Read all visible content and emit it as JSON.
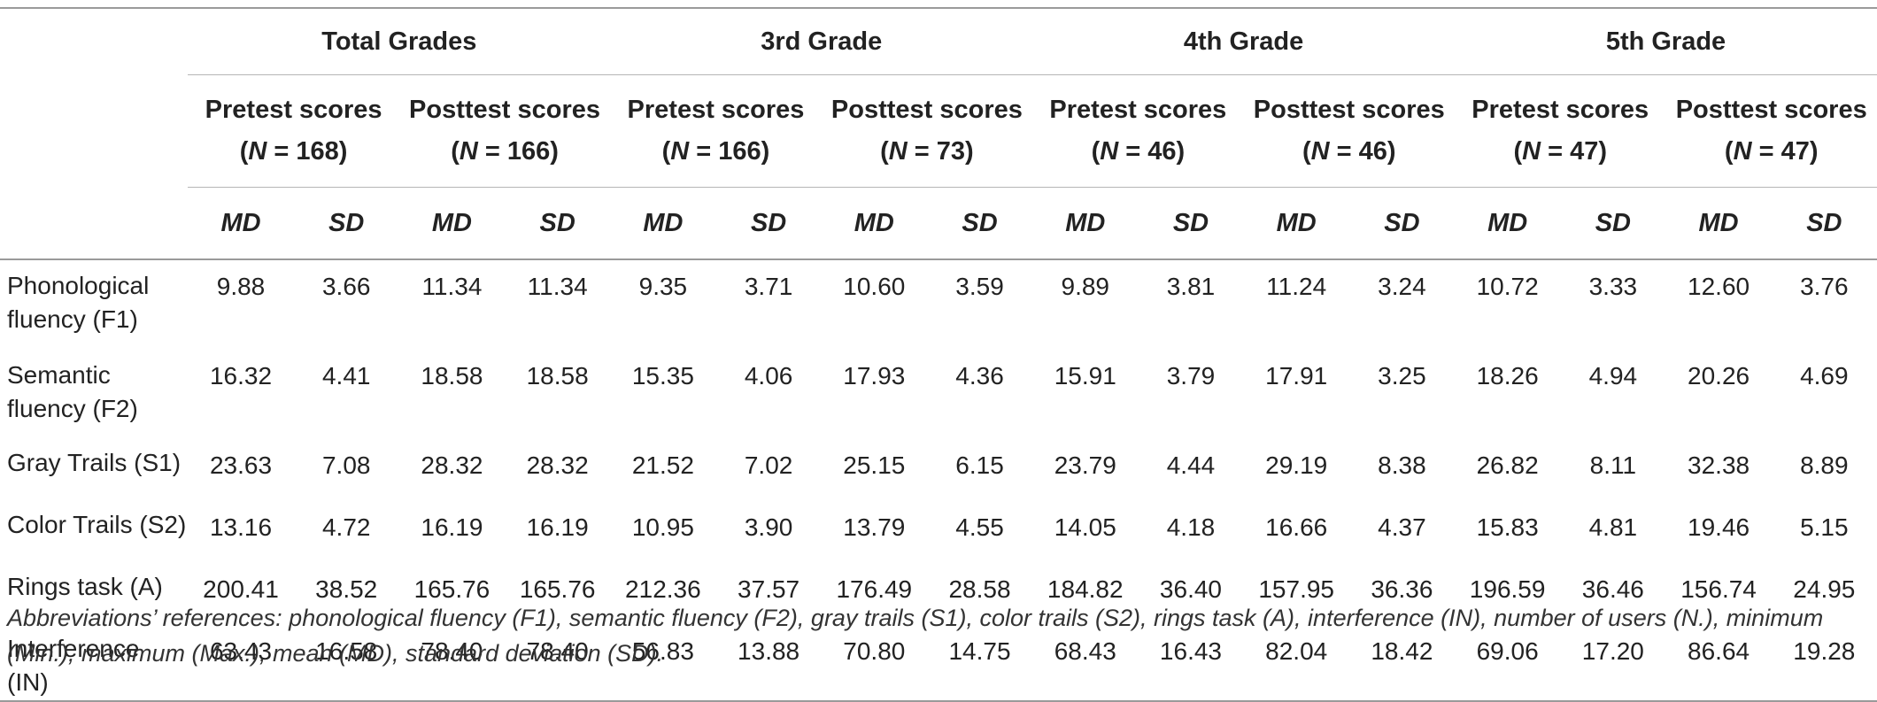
{
  "table": {
    "grades": [
      "Total Grades",
      "3rd Grade",
      "4th Grade",
      "5th Grade"
    ],
    "groups": [
      {
        "label": "Pretest scores",
        "n": "(N = 168)"
      },
      {
        "label": "Posttest scores",
        "n": "(N = 166)"
      },
      {
        "label": "Pretest scores",
        "n": "(N = 166)"
      },
      {
        "label": "Posttest scores",
        "n": "(N = 73)"
      },
      {
        "label": "Pretest scores",
        "n": "(N = 46)"
      },
      {
        "label": "Posttest scores",
        "n": "(N = 46)"
      },
      {
        "label": "Pretest scores",
        "n": "(N = 47)"
      },
      {
        "label": "Posttest scores",
        "n": "(N = 47)"
      }
    ],
    "stat_md": "MD",
    "stat_sd": "SD",
    "rows": [
      {
        "label": "Phonological fluency (F1)",
        "values": [
          "9.88",
          "3.66",
          "11.34",
          "11.34",
          "9.35",
          "3.71",
          "10.60",
          "3.59",
          "9.89",
          "3.81",
          "11.24",
          "3.24",
          "10.72",
          "3.33",
          "12.60",
          "3.76"
        ]
      },
      {
        "label": "Semantic fluency (F2)",
        "values": [
          "16.32",
          "4.41",
          "18.58",
          "18.58",
          "15.35",
          "4.06",
          "17.93",
          "4.36",
          "15.91",
          "3.79",
          "17.91",
          "3.25",
          "18.26",
          "4.94",
          "20.26",
          "4.69"
        ]
      },
      {
        "label": "Gray Trails (S1)",
        "values": [
          "23.63",
          "7.08",
          "28.32",
          "28.32",
          "21.52",
          "7.02",
          "25.15",
          "6.15",
          "23.79",
          "4.44",
          "29.19",
          "8.38",
          "26.82",
          "8.11",
          "32.38",
          "8.89"
        ]
      },
      {
        "label": "Color Trails (S2)",
        "values": [
          "13.16",
          "4.72",
          "16.19",
          "16.19",
          "10.95",
          "3.90",
          "13.79",
          "4.55",
          "14.05",
          "4.18",
          "16.66",
          "4.37",
          "15.83",
          "4.81",
          "19.46",
          "5.15"
        ]
      },
      {
        "label": "Rings task (A)",
        "values": [
          "200.41",
          "38.52",
          "165.76",
          "165.76",
          "212.36",
          "37.57",
          "176.49",
          "28.58",
          "184.82",
          "36.40",
          "157.95",
          "36.36",
          "196.59",
          "36.46",
          "156.74",
          "24.95"
        ]
      },
      {
        "label": "Interference (IN)",
        "values": [
          "63.43",
          "16.58",
          "78.40",
          "78.40",
          "56.83",
          "13.88",
          "70.80",
          "14.75",
          "68.43",
          "16.43",
          "82.04",
          "18.42",
          "69.06",
          "17.20",
          "86.64",
          "19.28"
        ]
      }
    ]
  },
  "footnote": "Abbreviations’ references: phonological fluency (F1), semantic fluency (F2), gray trails (S1), color trails (S2), rings task (A), interference (IN), number of users (N.), minimum (Min.), maximum (Max.), mean (MD), standard deviation (SD)."
}
